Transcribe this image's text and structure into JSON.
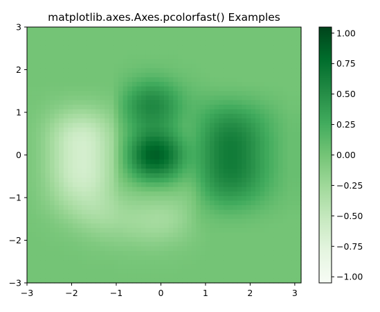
{
  "chart_data": {
    "type": "heatmap",
    "title": "matplotlib.axes.Axes.pcolorfast() Examples",
    "xlabel": "",
    "ylabel": "",
    "xlim": [
      -3,
      3.1415926
    ],
    "ylim": [
      -3,
      3
    ],
    "x_ticks": [
      {
        "value": -3,
        "label": "−3"
      },
      {
        "value": -2,
        "label": "−2"
      },
      {
        "value": -1,
        "label": "−1"
      },
      {
        "value": 0,
        "label": "0"
      },
      {
        "value": 1,
        "label": "1"
      },
      {
        "value": 2,
        "label": "2"
      },
      {
        "value": 3,
        "label": "3"
      }
    ],
    "y_ticks": [
      {
        "value": -3,
        "label": "−3"
      },
      {
        "value": -2,
        "label": "−2"
      },
      {
        "value": -1,
        "label": "−1"
      },
      {
        "value": 0,
        "label": "0"
      },
      {
        "value": 1,
        "label": "1"
      },
      {
        "value": 2,
        "label": "2"
      },
      {
        "value": 3,
        "label": "3"
      }
    ],
    "colormap": "Greens",
    "colormap_stops": [
      "#f7fcf5",
      "#e5f5e0",
      "#c7e9c0",
      "#a1d99b",
      "#74c476",
      "#41ab5d",
      "#238b45",
      "#006d2c",
      "#00441b"
    ],
    "color_range": [
      -1.05,
      1.05
    ],
    "colorbar": {
      "location": "right",
      "ticks": [
        {
          "value": 1.0,
          "label": "1.00"
        },
        {
          "value": 0.75,
          "label": "0.75"
        },
        {
          "value": 0.5,
          "label": "0.50"
        },
        {
          "value": 0.25,
          "label": "0.25"
        },
        {
          "value": 0.0,
          "label": "0.00"
        },
        {
          "value": -0.25,
          "label": "−0.25"
        },
        {
          "value": -0.5,
          "label": "−0.50"
        },
        {
          "value": -0.75,
          "label": "−0.75"
        },
        {
          "value": -1.0,
          "label": "−1.00"
        }
      ]
    },
    "grid": false,
    "field": {
      "x": [
        -2.9,
        -2.7,
        -2.5,
        -2.3,
        -2.1,
        -1.9,
        -1.7,
        -1.5,
        -1.3,
        -1.1,
        -0.9,
        -0.7,
        -0.5,
        -0.3,
        -0.1,
        0.1,
        0.3,
        0.5,
        0.7,
        0.9,
        1.1,
        1.3,
        1.5,
        1.7,
        1.9,
        2.1,
        2.3,
        2.5,
        2.7,
        2.9
      ],
      "y": [
        2.9,
        2.7,
        2.5,
        2.3,
        2.1,
        1.9,
        1.7,
        1.5,
        1.3,
        1.1,
        0.9,
        0.7,
        0.5,
        0.3,
        0.1,
        -0.1,
        -0.3,
        -0.5,
        -0.7,
        -0.9,
        -1.1,
        -1.3,
        -1.5,
        -1.7,
        -1.9,
        -2.1,
        -2.3,
        -2.5,
        -2.7,
        -2.9
      ],
      "z": [
        [
          0.0,
          0.0,
          0.0,
          0.0,
          0.0,
          0.0,
          0.0,
          0.0,
          0.0,
          0.0,
          0.0,
          0.0,
          0.0,
          0.0,
          0.0,
          0.0,
          0.0,
          0.0,
          0.0,
          0.0,
          0.0,
          0.0,
          0.0,
          0.0,
          0.0,
          0.0,
          0.0,
          0.0,
          0.0,
          0.0
        ],
        [
          0.0,
          0.0,
          0.0,
          0.0,
          0.0,
          0.0,
          0.0,
          0.0,
          0.0,
          0.0,
          0.0,
          0.0,
          0.0,
          0.0,
          0.0,
          0.0,
          0.0,
          0.0,
          0.0,
          0.0,
          0.0,
          0.0,
          0.0,
          0.0,
          0.0,
          0.0,
          0.0,
          0.0,
          0.0,
          0.0
        ],
        [
          0.0,
          0.0,
          0.0,
          0.0,
          0.0,
          0.0,
          0.0,
          0.0,
          0.0,
          0.0,
          0.0,
          0.0,
          0.0,
          0.0,
          0.0,
          0.0,
          0.0,
          0.0,
          0.0,
          0.0,
          0.0,
          0.0,
          0.0,
          0.0,
          0.0,
          0.0,
          0.0,
          0.0,
          0.0,
          0.0
        ],
        [
          0.0,
          0.0,
          0.0,
          0.0,
          0.0,
          0.0,
          0.0,
          0.0,
          0.0,
          0.0,
          0.0,
          0.01,
          0.01,
          0.01,
          0.01,
          0.01,
          0.01,
          0.0,
          0.0,
          0.0,
          0.0,
          0.0,
          0.0,
          0.0,
          0.0,
          0.0,
          0.0,
          0.0,
          0.0,
          0.0
        ],
        [
          0.0,
          0.0,
          0.0,
          0.0,
          0.0,
          0.0,
          0.0,
          0.0,
          0.0,
          0.0,
          0.01,
          0.02,
          0.03,
          0.04,
          0.04,
          0.03,
          0.02,
          0.01,
          0.01,
          0.0,
          0.0,
          0.0,
          0.0,
          0.0,
          0.0,
          0.0,
          0.0,
          0.0,
          0.0,
          0.0
        ],
        [
          0.0,
          0.0,
          0.0,
          0.0,
          0.0,
          0.0,
          0.0,
          0.0,
          0.0,
          0.0,
          0.03,
          0.06,
          0.09,
          0.11,
          0.11,
          0.09,
          0.06,
          0.04,
          0.02,
          0.01,
          0.0,
          0.0,
          0.0,
          0.0,
          0.0,
          0.0,
          0.0,
          0.0,
          0.0,
          0.0
        ],
        [
          0.0,
          0.0,
          0.0,
          0.0,
          0.0,
          0.0,
          0.0,
          0.0,
          0.0,
          0.0,
          0.06,
          0.13,
          0.19,
          0.24,
          0.24,
          0.2,
          0.14,
          0.08,
          0.05,
          0.03,
          0.02,
          0.01,
          0.01,
          0.01,
          0.0,
          0.0,
          0.0,
          0.0,
          0.0,
          0.0
        ],
        [
          -0.01,
          -0.01,
          -0.02,
          -0.02,
          -0.03,
          -0.03,
          -0.03,
          -0.03,
          -0.02,
          -0.01,
          0.1,
          0.22,
          0.33,
          0.4,
          0.4,
          0.34,
          0.24,
          0.15,
          0.09,
          0.07,
          0.06,
          0.06,
          0.06,
          0.06,
          0.05,
          0.04,
          0.03,
          0.02,
          0.01,
          0.0
        ],
        [
          -0.01,
          -0.02,
          -0.04,
          -0.06,
          -0.08,
          -0.09,
          -0.09,
          -0.08,
          -0.06,
          -0.04,
          0.14,
          0.3,
          0.44,
          0.52,
          0.52,
          0.44,
          0.32,
          0.19,
          0.13,
          0.12,
          0.13,
          0.14,
          0.15,
          0.14,
          0.12,
          0.1,
          0.07,
          0.05,
          0.03,
          0.01
        ],
        [
          -0.02,
          -0.04,
          -0.08,
          -0.12,
          -0.16,
          -0.19,
          -0.19,
          -0.17,
          -0.13,
          -0.08,
          0.14,
          0.32,
          0.47,
          0.55,
          0.55,
          0.47,
          0.34,
          0.21,
          0.15,
          0.17,
          0.21,
          0.25,
          0.27,
          0.26,
          0.23,
          0.19,
          0.14,
          0.09,
          0.05,
          0.02
        ],
        [
          -0.03,
          -0.07,
          -0.13,
          -0.21,
          -0.28,
          -0.32,
          -0.33,
          -0.29,
          -0.22,
          -0.14,
          0.11,
          0.28,
          0.42,
          0.5,
          0.5,
          0.43,
          0.31,
          0.18,
          0.16,
          0.22,
          0.3,
          0.37,
          0.41,
          0.4,
          0.35,
          0.28,
          0.21,
          0.14,
          0.08,
          0.04
        ],
        [
          -0.04,
          -0.1,
          -0.19,
          -0.3,
          -0.4,
          -0.46,
          -0.47,
          -0.42,
          -0.32,
          -0.2,
          0.06,
          0.23,
          0.37,
          0.46,
          0.47,
          0.4,
          0.29,
          0.16,
          0.16,
          0.25,
          0.37,
          0.47,
          0.52,
          0.51,
          0.45,
          0.36,
          0.26,
          0.17,
          0.1,
          0.05
        ],
        [
          -0.05,
          -0.12,
          -0.23,
          -0.37,
          -0.5,
          -0.57,
          -0.58,
          -0.52,
          -0.39,
          -0.25,
          0.03,
          0.22,
          0.4,
          0.52,
          0.54,
          0.47,
          0.34,
          0.19,
          0.17,
          0.28,
          0.42,
          0.54,
          0.6,
          0.59,
          0.52,
          0.41,
          0.29,
          0.19,
          0.11,
          0.06
        ],
        [
          -0.05,
          -0.13,
          -0.25,
          -0.4,
          -0.54,
          -0.62,
          -0.63,
          -0.56,
          -0.42,
          -0.27,
          0.04,
          0.28,
          0.51,
          0.69,
          0.73,
          0.64,
          0.47,
          0.27,
          0.2,
          0.31,
          0.46,
          0.59,
          0.65,
          0.64,
          0.56,
          0.45,
          0.32,
          0.21,
          0.12,
          0.06
        ],
        [
          -0.05,
          -0.13,
          -0.25,
          -0.4,
          -0.54,
          -0.62,
          -0.64,
          -0.57,
          -0.43,
          -0.27,
          0.06,
          0.34,
          0.62,
          0.83,
          0.88,
          0.78,
          0.58,
          0.34,
          0.24,
          0.32,
          0.47,
          0.6,
          0.66,
          0.65,
          0.57,
          0.45,
          0.32,
          0.21,
          0.12,
          0.06
        ],
        [
          -0.05,
          -0.13,
          -0.25,
          -0.4,
          -0.54,
          -0.62,
          -0.64,
          -0.57,
          -0.43,
          -0.27,
          0.06,
          0.34,
          0.62,
          0.83,
          0.88,
          0.78,
          0.58,
          0.34,
          0.24,
          0.32,
          0.47,
          0.6,
          0.66,
          0.65,
          0.57,
          0.45,
          0.32,
          0.21,
          0.12,
          0.06
        ],
        [
          -0.05,
          -0.13,
          -0.25,
          -0.4,
          -0.54,
          -0.62,
          -0.64,
          -0.57,
          -0.43,
          -0.27,
          0.03,
          0.26,
          0.49,
          0.66,
          0.7,
          0.62,
          0.46,
          0.26,
          0.19,
          0.3,
          0.46,
          0.59,
          0.65,
          0.64,
          0.56,
          0.45,
          0.32,
          0.21,
          0.12,
          0.06
        ],
        [
          -0.05,
          -0.12,
          -0.24,
          -0.38,
          -0.52,
          -0.6,
          -0.62,
          -0.56,
          -0.43,
          -0.27,
          -0.02,
          0.14,
          0.29,
          0.4,
          0.43,
          0.38,
          0.28,
          0.15,
          0.13,
          0.27,
          0.43,
          0.55,
          0.61,
          0.6,
          0.53,
          0.42,
          0.3,
          0.19,
          0.11,
          0.06
        ],
        [
          -0.05,
          -0.11,
          -0.21,
          -0.34,
          -0.47,
          -0.55,
          -0.57,
          -0.52,
          -0.41,
          -0.27,
          -0.09,
          0.01,
          0.09,
          0.15,
          0.16,
          0.14,
          0.08,
          0.02,
          0.05,
          0.21,
          0.37,
          0.48,
          0.53,
          0.52,
          0.46,
          0.36,
          0.26,
          0.17,
          0.1,
          0.05
        ],
        [
          -0.04,
          -0.1,
          -0.18,
          -0.29,
          -0.4,
          -0.47,
          -0.5,
          -0.47,
          -0.39,
          -0.28,
          -0.15,
          -0.1,
          -0.07,
          -0.05,
          -0.05,
          -0.05,
          -0.06,
          -0.07,
          -0.02,
          0.15,
          0.29,
          0.38,
          0.42,
          0.41,
          0.36,
          0.29,
          0.21,
          0.13,
          0.08,
          0.04
        ],
        [
          -0.03,
          -0.08,
          -0.14,
          -0.23,
          -0.32,
          -0.39,
          -0.43,
          -0.43,
          -0.38,
          -0.31,
          -0.22,
          -0.18,
          -0.17,
          -0.17,
          -0.17,
          -0.17,
          -0.16,
          -0.13,
          -0.06,
          0.09,
          0.19,
          0.26,
          0.29,
          0.28,
          0.25,
          0.2,
          0.14,
          0.09,
          0.05,
          0.03
        ],
        [
          -0.02,
          -0.06,
          -0.1,
          -0.17,
          -0.24,
          -0.31,
          -0.36,
          -0.38,
          -0.36,
          -0.32,
          -0.26,
          -0.24,
          -0.24,
          -0.25,
          -0.26,
          -0.25,
          -0.22,
          -0.17,
          -0.08,
          0.04,
          0.1,
          0.15,
          0.17,
          0.16,
          0.14,
          0.11,
          0.08,
          0.05,
          0.03,
          0.01
        ],
        [
          -0.01,
          -0.03,
          -0.06,
          -0.11,
          -0.16,
          -0.22,
          -0.27,
          -0.3,
          -0.31,
          -0.3,
          -0.27,
          -0.27,
          -0.28,
          -0.29,
          -0.3,
          -0.29,
          -0.25,
          -0.19,
          -0.09,
          0.01,
          0.04,
          0.06,
          0.07,
          0.07,
          0.06,
          0.05,
          0.03,
          0.02,
          0.01,
          0.0
        ],
        [
          -0.01,
          -0.02,
          -0.03,
          -0.06,
          -0.09,
          -0.14,
          -0.18,
          -0.21,
          -0.23,
          -0.23,
          -0.23,
          -0.24,
          -0.25,
          -0.27,
          -0.27,
          -0.26,
          -0.22,
          -0.16,
          -0.09,
          -0.02,
          0.01,
          0.02,
          0.02,
          0.02,
          0.02,
          0.01,
          0.01,
          0.0,
          0.0,
          0.0
        ],
        [
          0.0,
          -0.01,
          -0.02,
          -0.03,
          -0.05,
          -0.07,
          -0.1,
          -0.13,
          -0.15,
          -0.16,
          -0.16,
          -0.18,
          -0.19,
          -0.2,
          -0.2,
          -0.19,
          -0.16,
          -0.12,
          -0.07,
          -0.03,
          0.0,
          0.0,
          0.0,
          0.0,
          0.0,
          0.0,
          0.0,
          0.0,
          0.0,
          0.0
        ],
        [
          0.0,
          0.0,
          -0.01,
          -0.01,
          -0.02,
          -0.03,
          -0.05,
          -0.06,
          -0.08,
          -0.09,
          -0.1,
          -0.1,
          -0.11,
          -0.12,
          -0.12,
          -0.11,
          -0.09,
          -0.07,
          -0.04,
          -0.02,
          0.0,
          0.0,
          0.0,
          0.0,
          0.0,
          0.0,
          0.0,
          0.0,
          0.0,
          0.0
        ],
        [
          0.0,
          0.0,
          0.0,
          0.0,
          -0.01,
          -0.01,
          -0.02,
          -0.03,
          -0.03,
          -0.04,
          -0.04,
          -0.05,
          -0.05,
          -0.06,
          -0.06,
          -0.05,
          -0.04,
          -0.03,
          -0.02,
          -0.01,
          0.0,
          0.0,
          0.0,
          0.0,
          0.0,
          0.0,
          0.0,
          0.0,
          0.0,
          0.0
        ],
        [
          0.0,
          0.0,
          0.0,
          0.0,
          0.0,
          0.0,
          -0.01,
          -0.01,
          -0.01,
          -0.01,
          -0.02,
          -0.02,
          -0.02,
          -0.02,
          -0.02,
          -0.02,
          -0.02,
          -0.01,
          -0.01,
          0.0,
          0.0,
          0.0,
          0.0,
          0.0,
          0.0,
          0.0,
          0.0,
          0.0,
          0.0,
          0.0
        ],
        [
          0.0,
          0.0,
          0.0,
          0.0,
          0.0,
          0.0,
          0.0,
          0.0,
          0.0,
          0.0,
          -0.01,
          -0.01,
          -0.01,
          -0.01,
          -0.01,
          -0.01,
          -0.01,
          0.0,
          0.0,
          0.0,
          0.0,
          0.0,
          0.0,
          0.0,
          0.0,
          0.0,
          0.0,
          0.0,
          0.0,
          0.0
        ],
        [
          0.0,
          0.0,
          0.0,
          0.0,
          0.0,
          0.0,
          0.0,
          0.0,
          0.0,
          0.0,
          0.0,
          0.0,
          0.0,
          0.0,
          0.0,
          0.0,
          0.0,
          0.0,
          0.0,
          0.0,
          0.0,
          0.0,
          0.0,
          0.0,
          0.0,
          0.0,
          0.0,
          0.0,
          0.0,
          0.0
        ]
      ]
    }
  }
}
